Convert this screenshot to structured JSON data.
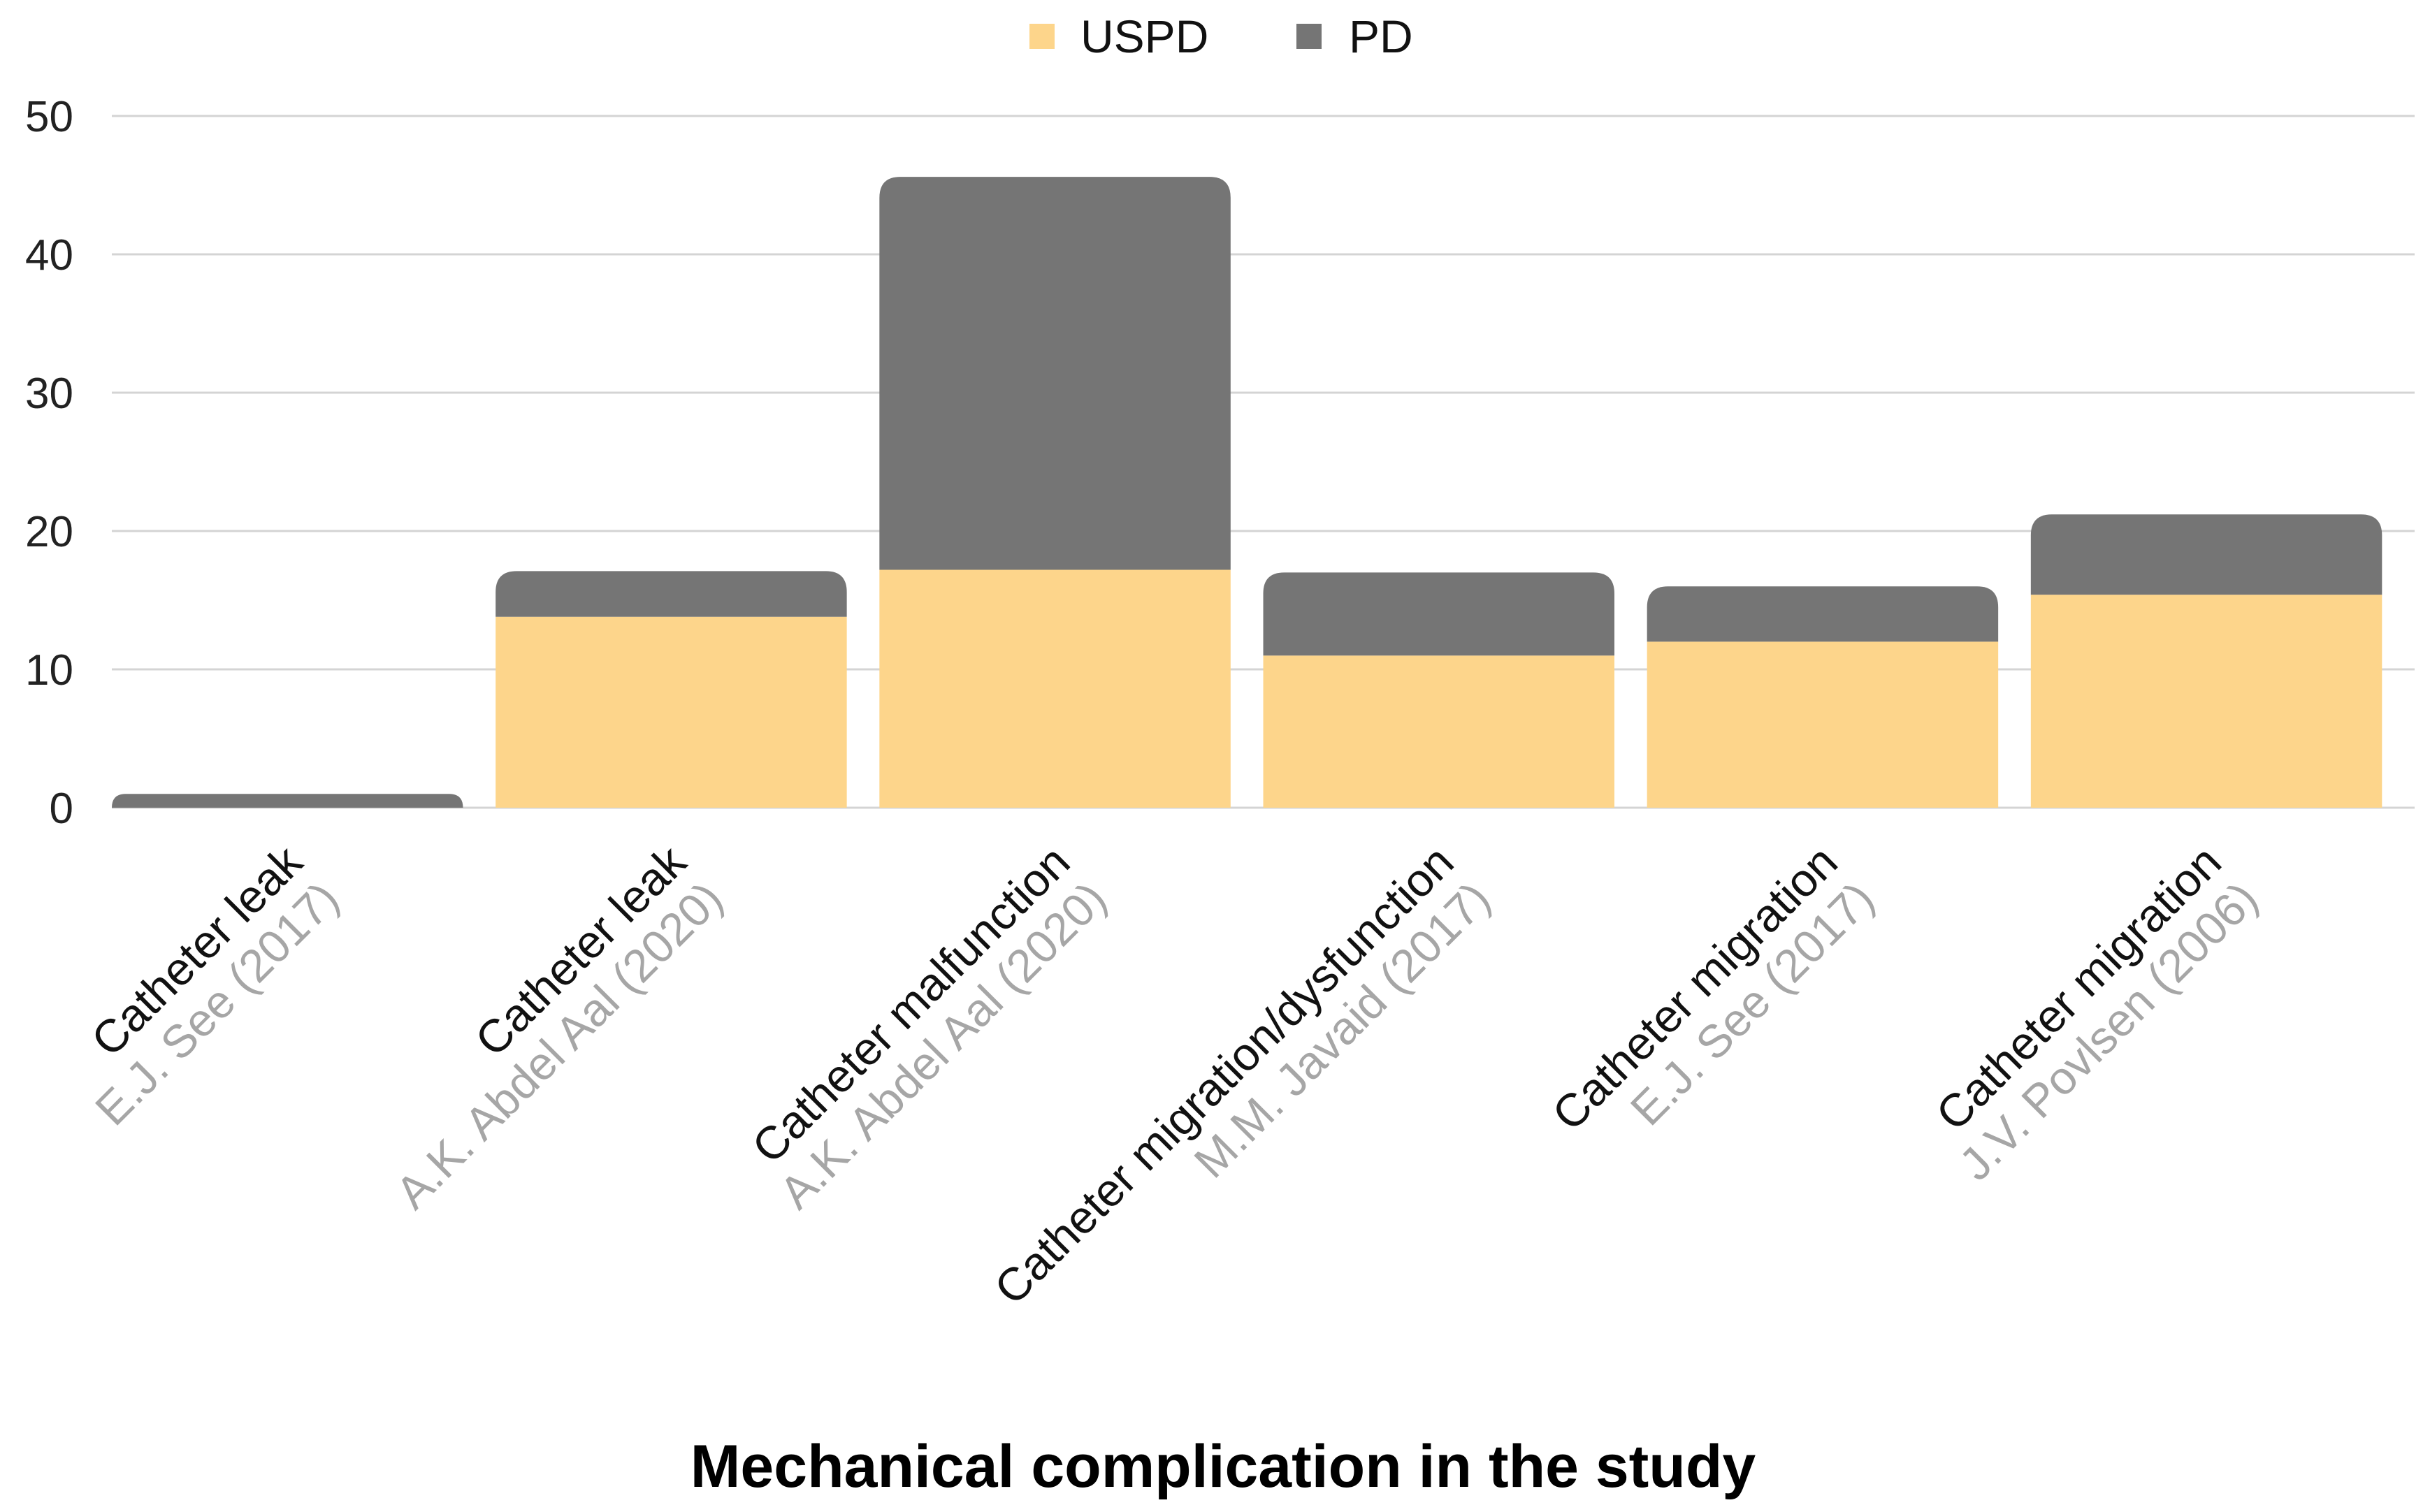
{
  "chart_data": {
    "type": "bar",
    "stacked": true,
    "title": "",
    "xlabel": "Mechanical complication in the study",
    "ylabel": "",
    "ylim": [
      0,
      50
    ],
    "yticks": [
      0,
      10,
      20,
      30,
      40,
      50
    ],
    "grid": true,
    "legend_position": "top-center",
    "categories": [
      {
        "label": "Catheter leak",
        "study": "E.J. See (2017)"
      },
      {
        "label": "Catheter leak",
        "study": "A.K. Abdel Aal (2020)"
      },
      {
        "label": "Catheter malfunction",
        "study": "A.K. Abdel Aal (2020)"
      },
      {
        "label": "Catheter migration/dysfunction",
        "study": "M.M. Javaid (2017)"
      },
      {
        "label": "Catheter migration",
        "study": "E.J. See (2017)"
      },
      {
        "label": "Catheter migration",
        "study": "J.V. Povlsen (2006)"
      }
    ],
    "series": [
      {
        "name": "USPD",
        "color": "#fdd58b",
        "values": [
          0,
          13.8,
          17.2,
          11,
          12,
          15.4
        ]
      },
      {
        "name": "PD",
        "color": "#757575",
        "values": [
          1,
          3.3,
          28.4,
          6,
          4,
          5.8
        ]
      }
    ]
  }
}
